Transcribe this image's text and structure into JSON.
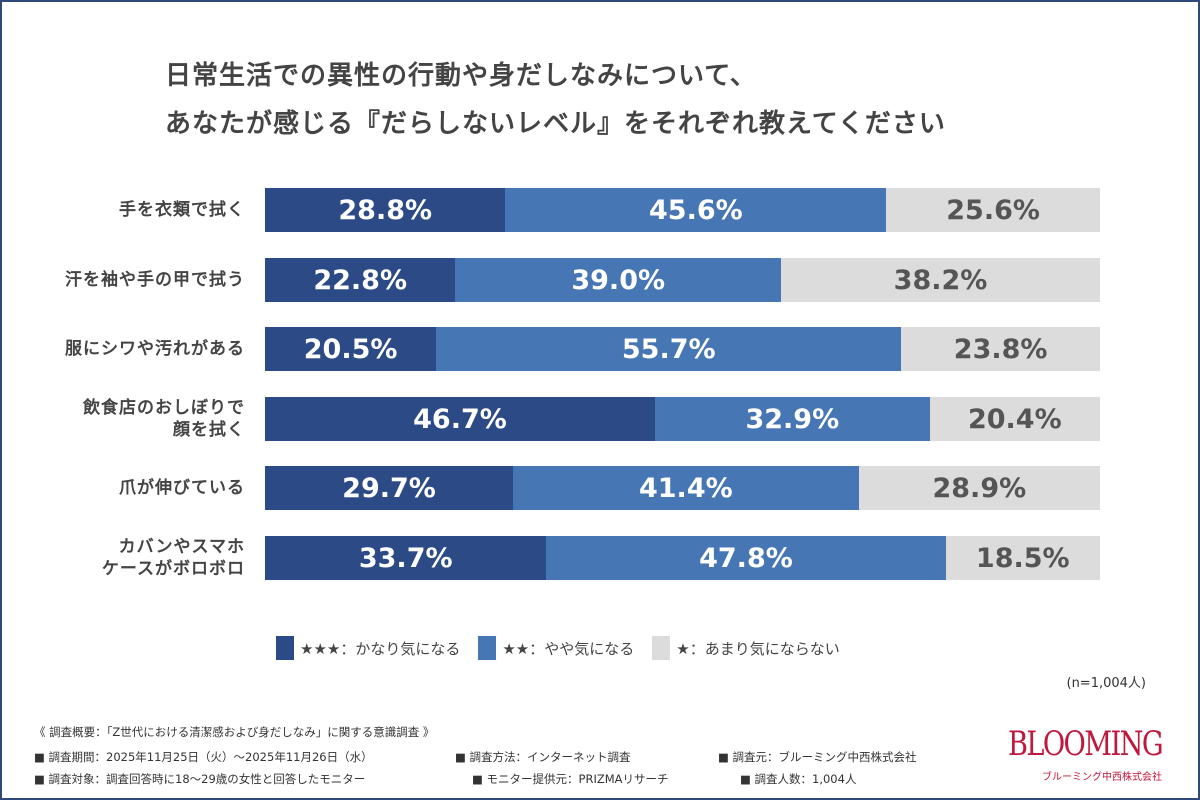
{
  "title": [
    "日常生活での異性の行動や身だしなみについて、",
    "あなたが感じる『だらしないレベル』をそれぞれ教えてください"
  ],
  "chart_data": {
    "type": "bar",
    "orientation": "horizontal",
    "stacked": true,
    "percent": true,
    "categories": [
      "手を衣類で拭く",
      "汗を袖や手の甲で拭う",
      "服にシワや汚れがある",
      "飲食店のおしぼりで\n顔を拭く",
      "爪が伸びている",
      "カバンやスマホ\nケースがボロボロ"
    ],
    "series": [
      {
        "name": "★★★：かなり気になる",
        "color": "#2c4a85",
        "text_color": "#ffffff",
        "values": [
          28.8,
          22.8,
          20.5,
          46.7,
          29.7,
          33.7
        ]
      },
      {
        "name": "★★：やや気になる",
        "color": "#4676b4",
        "text_color": "#ffffff",
        "values": [
          45.6,
          39.0,
          55.7,
          32.9,
          41.4,
          47.8
        ]
      },
      {
        "name": "★：あまり気にならない",
        "color": "#dcdcdc",
        "text_color": "#555555",
        "values": [
          25.6,
          38.2,
          23.8,
          20.4,
          28.9,
          18.5
        ]
      }
    ],
    "legend_position": "bottom",
    "grid": false
  },
  "sample": "(n=1,004人)",
  "footer": {
    "heading": "《 調査概要：「Z世代における清潔感および身だしなみ」に関する意識調査 》",
    "items": [
      "■ 調査期間：2025年11月25日（火）～2025年11月26日（水）",
      "■ 調査方法：インターネット調査",
      "■ 調査元：ブルーミング中西株式会社",
      "■ 調査対象：調査回答時に18～29歳の女性と回答したモニター",
      "■ モニター提供元：PRIZMAリサーチ",
      "■ 調査人数：1,004人"
    ]
  },
  "logo": {
    "text": "BLOOMING",
    "sub": "ブルーミング中西株式会社"
  }
}
